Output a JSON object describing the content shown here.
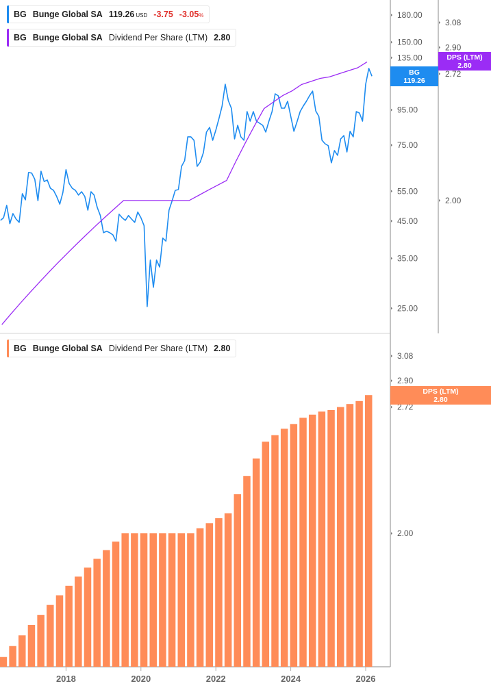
{
  "colors": {
    "price": "#1e8cf0",
    "dps_line": "#9b2cf5",
    "dps_bar": "#ff8c58",
    "axis": "#b0b0b0",
    "tick_text": "#555555"
  },
  "top_legend_price": {
    "ticker": "BG",
    "company": "Bunge Global SA",
    "price": "119.26",
    "currency": "USD",
    "change": "-3.75",
    "change_pct": "-3.05",
    "pct_sign": "%"
  },
  "top_legend_dps": {
    "ticker": "BG",
    "company": "Bunge Global SA",
    "metric": "Dividend Per Share (LTM)",
    "value": "2.80"
  },
  "bottom_legend_dps": {
    "ticker": "BG",
    "company": "Bunge Global SA",
    "metric": "Dividend Per Share (LTM)",
    "value": "2.80"
  },
  "price_tag": {
    "ticker": "BG",
    "value": "119.26"
  },
  "dps_tag_top": {
    "label": "DPS (LTM)",
    "value": "2.80"
  },
  "dps_tag_bottom": {
    "label": "DPS (LTM)",
    "value": "2.80"
  },
  "chart_data": [
    {
      "type": "line",
      "scale": "log",
      "price_axis_ticks": [
        "180.00",
        "150.00",
        "135.00",
        "115.00",
        "95.00",
        "75.00",
        "55.00",
        "45.00",
        "35.00",
        "25.00"
      ],
      "dps_axis_ticks": [
        "3.08",
        "2.90",
        "2.72",
        "2.00"
      ],
      "series": [
        {
          "name": "BG",
          "axis": "price",
          "points": [
            [
              "2016-04",
              45.2
            ],
            [
              "2016-05",
              46.0
            ],
            [
              "2016-06",
              50.0
            ],
            [
              "2016-07",
              44.2
            ],
            [
              "2016-08",
              47.3
            ],
            [
              "2016-09",
              45.6
            ],
            [
              "2016-10",
              44.6
            ],
            [
              "2016-11",
              54.1
            ],
            [
              "2016-12",
              51.9
            ],
            [
              "2017-01",
              62.4
            ],
            [
              "2017-02",
              62.1
            ],
            [
              "2017-03",
              59.6
            ],
            [
              "2017-04",
              51.6
            ],
            [
              "2017-05",
              62.9
            ],
            [
              "2017-06",
              58.7
            ],
            [
              "2017-07",
              59.3
            ],
            [
              "2017-08",
              56.1
            ],
            [
              "2017-09",
              55.3
            ],
            [
              "2017-10",
              53.1
            ],
            [
              "2017-11",
              50.4
            ],
            [
              "2017-12",
              54.5
            ],
            [
              "2018-01",
              63.6
            ],
            [
              "2018-02",
              57.9
            ],
            [
              "2018-03",
              56.1
            ],
            [
              "2018-04",
              55.3
            ],
            [
              "2018-05",
              53.6
            ],
            [
              "2018-06",
              54.8
            ],
            [
              "2018-07",
              53.1
            ],
            [
              "2018-08",
              48.4
            ],
            [
              "2018-09",
              54.8
            ],
            [
              "2018-10",
              53.6
            ],
            [
              "2018-11",
              49.3
            ],
            [
              "2018-12",
              46.7
            ],
            [
              "2019-01",
              41.6
            ],
            [
              "2019-02",
              42.0
            ],
            [
              "2019-03",
              41.6
            ],
            [
              "2019-04",
              41.0
            ],
            [
              "2019-05",
              39.3
            ],
            [
              "2019-06",
              47.1
            ],
            [
              "2019-07",
              46.0
            ],
            [
              "2019-08",
              45.2
            ],
            [
              "2019-09",
              46.7
            ],
            [
              "2019-10",
              45.6
            ],
            [
              "2019-11",
              44.6
            ],
            [
              "2019-12",
              47.8
            ],
            [
              "2020-01",
              46.0
            ],
            [
              "2020-02",
              43.6
            ],
            [
              "2020-03",
              25.3
            ],
            [
              "2020-04",
              34.6
            ],
            [
              "2020-05",
              28.8
            ],
            [
              "2020-06",
              34.6
            ],
            [
              "2020-07",
              33.0
            ],
            [
              "2020-08",
              40.1
            ],
            [
              "2020-09",
              39.3
            ],
            [
              "2020-10",
              48.4
            ],
            [
              "2020-11",
              51.6
            ],
            [
              "2020-12",
              55.3
            ],
            [
              "2021-01",
              55.6
            ],
            [
              "2021-02",
              65.0
            ],
            [
              "2021-03",
              67.5
            ],
            [
              "2021-04",
              79.3
            ],
            [
              "2021-05",
              79.3
            ],
            [
              "2021-06",
              77.5
            ],
            [
              "2021-07",
              65.0
            ],
            [
              "2021-08",
              66.9
            ],
            [
              "2021-09",
              71.3
            ],
            [
              "2021-10",
              81.9
            ],
            [
              "2021-11",
              84.5
            ],
            [
              "2021-12",
              77.5
            ],
            [
              "2022-01",
              83.0
            ],
            [
              "2022-02",
              89.8
            ],
            [
              "2022-03",
              97.5
            ],
            [
              "2022-04",
              113.0
            ],
            [
              "2022-05",
              101.2
            ],
            [
              "2022-06",
              96.0
            ],
            [
              "2022-07",
              78.2
            ],
            [
              "2022-08",
              85.7
            ],
            [
              "2022-09",
              79.3
            ],
            [
              "2022-10",
              77.5
            ],
            [
              "2022-11",
              94.0
            ],
            [
              "2022-12",
              88.1
            ],
            [
              "2023-01",
              94.0
            ],
            [
              "2023-02",
              88.1
            ],
            [
              "2023-03",
              86.9
            ],
            [
              "2023-04",
              85.7
            ],
            [
              "2023-05",
              81.9
            ],
            [
              "2023-06",
              88.1
            ],
            [
              "2023-07",
              94.0
            ],
            [
              "2023-08",
              105.9
            ],
            [
              "2023-09",
              104.5
            ],
            [
              "2023-10",
              96.2
            ],
            [
              "2023-11",
              96.2
            ],
            [
              "2023-12",
              100.7
            ],
            [
              "2024-01",
              91.0
            ],
            [
              "2024-02",
              82.3
            ],
            [
              "2024-03",
              87.7
            ],
            [
              "2024-04",
              94.0
            ],
            [
              "2024-05",
              97.5
            ],
            [
              "2024-06",
              100.7
            ],
            [
              "2024-07",
              104.5
            ],
            [
              "2024-08",
              107.9
            ],
            [
              "2024-09",
              94.4
            ],
            [
              "2024-10",
              91.0
            ],
            [
              "2024-11",
              77.5
            ],
            [
              "2024-12",
              75.7
            ],
            [
              "2025-01",
              74.7
            ],
            [
              "2025-02",
              66.6
            ],
            [
              "2025-03",
              72.3
            ],
            [
              "2025-04",
              70.0
            ],
            [
              "2025-05",
              78.2
            ],
            [
              "2025-06",
              80.0
            ],
            [
              "2025-07",
              71.6
            ],
            [
              "2025-08",
              82.3
            ],
            [
              "2025-09",
              79.3
            ],
            [
              "2025-10",
              94.0
            ],
            [
              "2025-11",
              93.1
            ],
            [
              "2025-12",
              88.1
            ],
            [
              "2026-01",
              113.0
            ],
            [
              "2026-02",
              125.7
            ],
            [
              "2026-03",
              119.26
            ]
          ]
        },
        {
          "name": "Dividend Per Share (LTM)",
          "axis": "dps",
          "ref": "dps_values"
        }
      ]
    },
    {
      "type": "bar",
      "scale": "log",
      "y_axis_ticks": [
        "3.08",
        "2.90",
        "2.72",
        "2.00"
      ],
      "x_tick_labels": [
        "2018",
        "2020",
        "2022",
        "2024",
        "2026"
      ],
      "dates": [
        "2016-04",
        "2016-07",
        "2016-10",
        "2017-01",
        "2017-04",
        "2017-07",
        "2017-10",
        "2018-01",
        "2018-04",
        "2018-07",
        "2018-10",
        "2019-01",
        "2019-04",
        "2019-07",
        "2019-10",
        "2020-01",
        "2020-04",
        "2020-07",
        "2020-10",
        "2021-01",
        "2021-04",
        "2021-07",
        "2021-10",
        "2022-01",
        "2022-04",
        "2022-07",
        "2022-10",
        "2023-01",
        "2023-04",
        "2023-07",
        "2023-10",
        "2024-01",
        "2024-04",
        "2024-07",
        "2024-10",
        "2025-01",
        "2025-04",
        "2025-07",
        "2025-10",
        "2026-01"
      ],
      "dps_values": [
        1.48,
        1.52,
        1.56,
        1.6,
        1.64,
        1.68,
        1.72,
        1.76,
        1.8,
        1.84,
        1.88,
        1.92,
        1.96,
        2.0,
        2.0,
        2.0,
        2.0,
        2.0,
        2.0,
        2.0,
        2.0,
        2.025,
        2.05,
        2.075,
        2.1,
        2.2,
        2.3,
        2.4,
        2.5,
        2.54,
        2.58,
        2.61,
        2.65,
        2.67,
        2.69,
        2.7,
        2.72,
        2.74,
        2.76,
        2.8
      ]
    }
  ]
}
